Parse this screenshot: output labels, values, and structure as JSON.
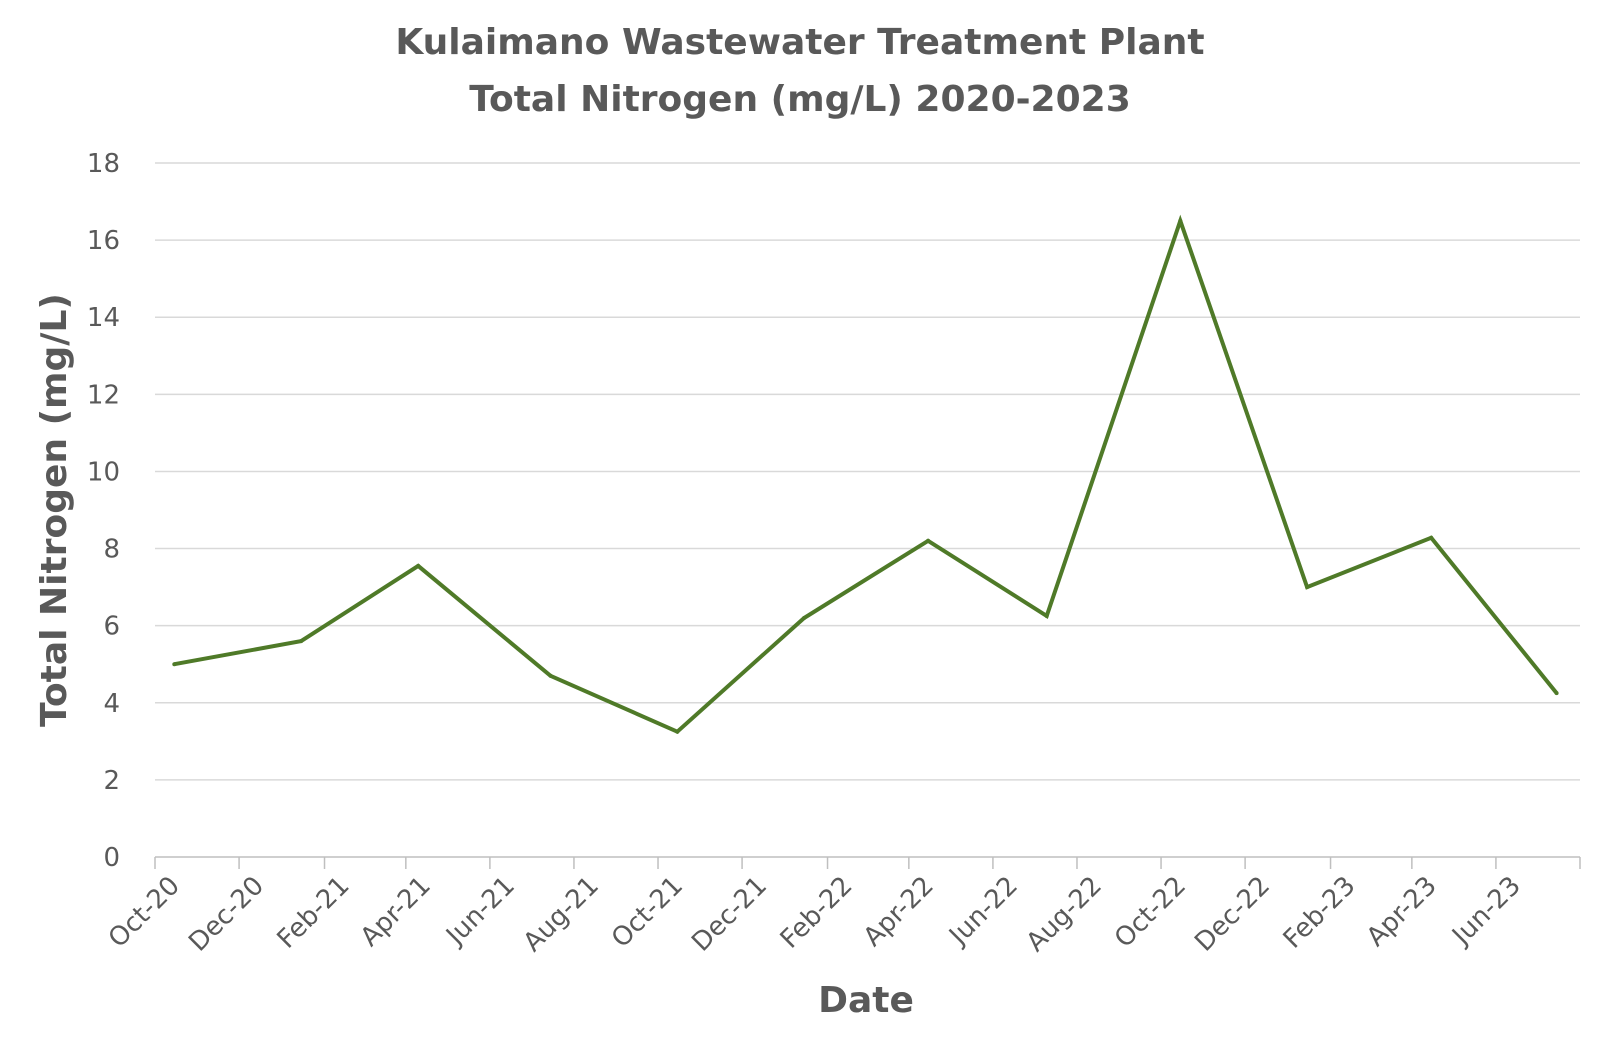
{
  "chart_data": {
    "type": "line",
    "title": [
      "Kulaimano Wastewater Treatment Plant",
      "Total Nitrogen (mg/L) 2020-2023"
    ],
    "xlabel": "Date",
    "ylabel": "Total Nitrogen (mg/L)",
    "ylim": [
      0,
      18
    ],
    "yticks": [
      "0",
      "2",
      "4",
      "6",
      "8",
      "10",
      "12",
      "14",
      "16",
      "18"
    ],
    "xlim": [
      "2020-10-01",
      "2023-08-01"
    ],
    "xticks": [
      {
        "label": "Oct-20",
        "date": "2020-10-01"
      },
      {
        "label": "Dec-20",
        "date": "2020-12-01"
      },
      {
        "label": "Feb-21",
        "date": "2021-02-01"
      },
      {
        "label": "Apr-21",
        "date": "2021-04-01"
      },
      {
        "label": "Jun-21",
        "date": "2021-06-01"
      },
      {
        "label": "Aug-21",
        "date": "2021-08-01"
      },
      {
        "label": "Oct-21",
        "date": "2021-10-01"
      },
      {
        "label": "Dec-21",
        "date": "2021-12-01"
      },
      {
        "label": "Feb-22",
        "date": "2022-02-01"
      },
      {
        "label": "Apr-22",
        "date": "2022-04-01"
      },
      {
        "label": "Jun-22",
        "date": "2022-06-01"
      },
      {
        "label": "Aug-22",
        "date": "2022-08-01"
      },
      {
        "label": "Oct-22",
        "date": "2022-10-01"
      },
      {
        "label": "Dec-22",
        "date": "2022-12-01"
      },
      {
        "label": "Feb-23",
        "date": "2023-02-01"
      },
      {
        "label": "Apr-23",
        "date": "2023-04-01"
      },
      {
        "label": "Jun-23",
        "date": "2023-06-01"
      }
    ],
    "grid": true,
    "series": [
      {
        "color": "#4f7a28",
        "points": [
          {
            "x": "2020-10-15",
            "y": 5.0
          },
          {
            "x": "2021-01-15",
            "y": 5.6
          },
          {
            "x": "2021-04-10",
            "y": 7.55
          },
          {
            "x": "2021-07-15",
            "y": 4.7
          },
          {
            "x": "2021-10-15",
            "y": 3.25
          },
          {
            "x": "2022-01-15",
            "y": 6.2
          },
          {
            "x": "2022-04-15",
            "y": 8.2
          },
          {
            "x": "2022-07-10",
            "y": 6.25
          },
          {
            "x": "2022-10-15",
            "y": 16.5
          },
          {
            "x": "2023-01-15",
            "y": 7.0
          },
          {
            "x": "2023-04-15",
            "y": 8.28
          },
          {
            "x": "2023-07-15",
            "y": 4.25
          }
        ]
      }
    ]
  }
}
